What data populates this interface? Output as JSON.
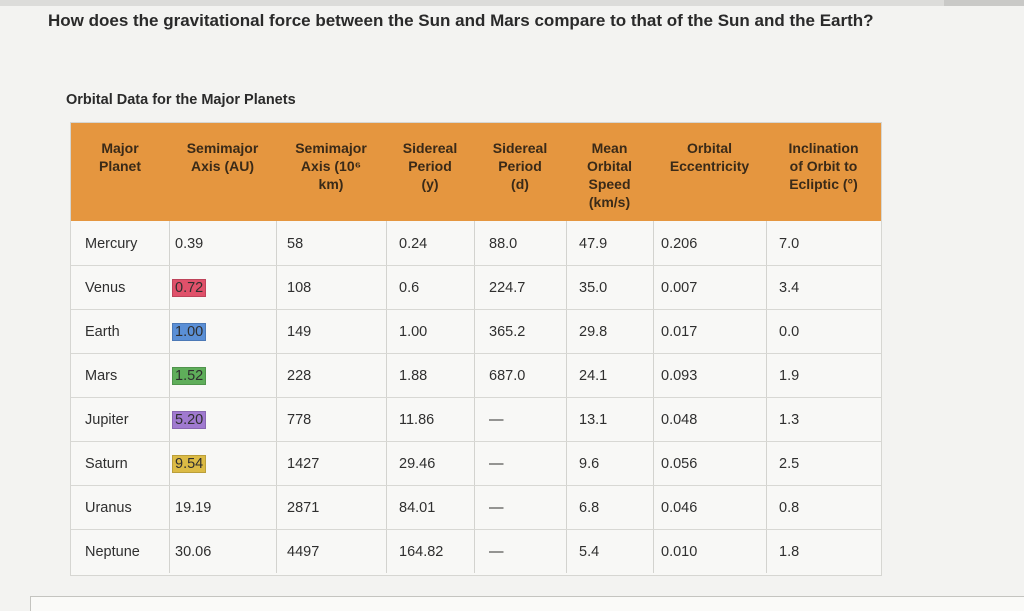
{
  "question": "How does the gravitational force between the Sun and Mars compare to that of the Sun and the Earth?",
  "table_title": "Orbital Data for the Major Planets",
  "headers": [
    [
      "Major",
      "Planet"
    ],
    [
      "Semimajor",
      "Axis (AU)"
    ],
    [
      "Semimajor",
      "Axis (10⁶",
      "km)"
    ],
    [
      "Sidereal",
      "Period",
      "(y)"
    ],
    [
      "Sidereal",
      "Period",
      "(d)"
    ],
    [
      "Mean",
      "Orbital",
      "Speed",
      "(km/s)"
    ],
    [
      "Orbital",
      "Eccentricity"
    ],
    [
      "Inclination",
      "of Orbit to",
      "Ecliptic (°)"
    ]
  ],
  "rows": [
    [
      "Mercury",
      "0.39",
      "58",
      "0.24",
      "88.0",
      "47.9",
      "0.206",
      "7.0"
    ],
    [
      "Venus",
      "0.72",
      "108",
      "0.6",
      "224.7",
      "35.0",
      "0.007",
      "3.4"
    ],
    [
      "Earth",
      "1.00",
      "149",
      "1.00",
      "365.2",
      "29.8",
      "0.017",
      "0.0"
    ],
    [
      "Mars",
      "1.52",
      "228",
      "1.88",
      "687.0",
      "24.1",
      "0.093",
      "1.9"
    ],
    [
      "Jupiter",
      "5.20",
      "778",
      "11.86",
      "—",
      "13.1",
      "0.048",
      "1.3"
    ],
    [
      "Saturn",
      "9.54",
      "1427",
      "29.46",
      "—",
      "9.6",
      "0.056",
      "2.5"
    ],
    [
      "Uranus",
      "19.19",
      "2871",
      "84.01",
      "—",
      "6.8",
      "0.046",
      "0.8"
    ],
    [
      "Neptune",
      "30.06",
      "4497",
      "164.82",
      "—",
      "5.4",
      "0.010",
      "1.8"
    ]
  ],
  "highlight_colors": {
    "Venus": "#e0516a",
    "Earth": "#5a8fd6",
    "Mars": "#5fae5a",
    "Jupiter": "#a07ad0",
    "Saturn": "#dcbb45"
  },
  "header_color": "#e5963f"
}
